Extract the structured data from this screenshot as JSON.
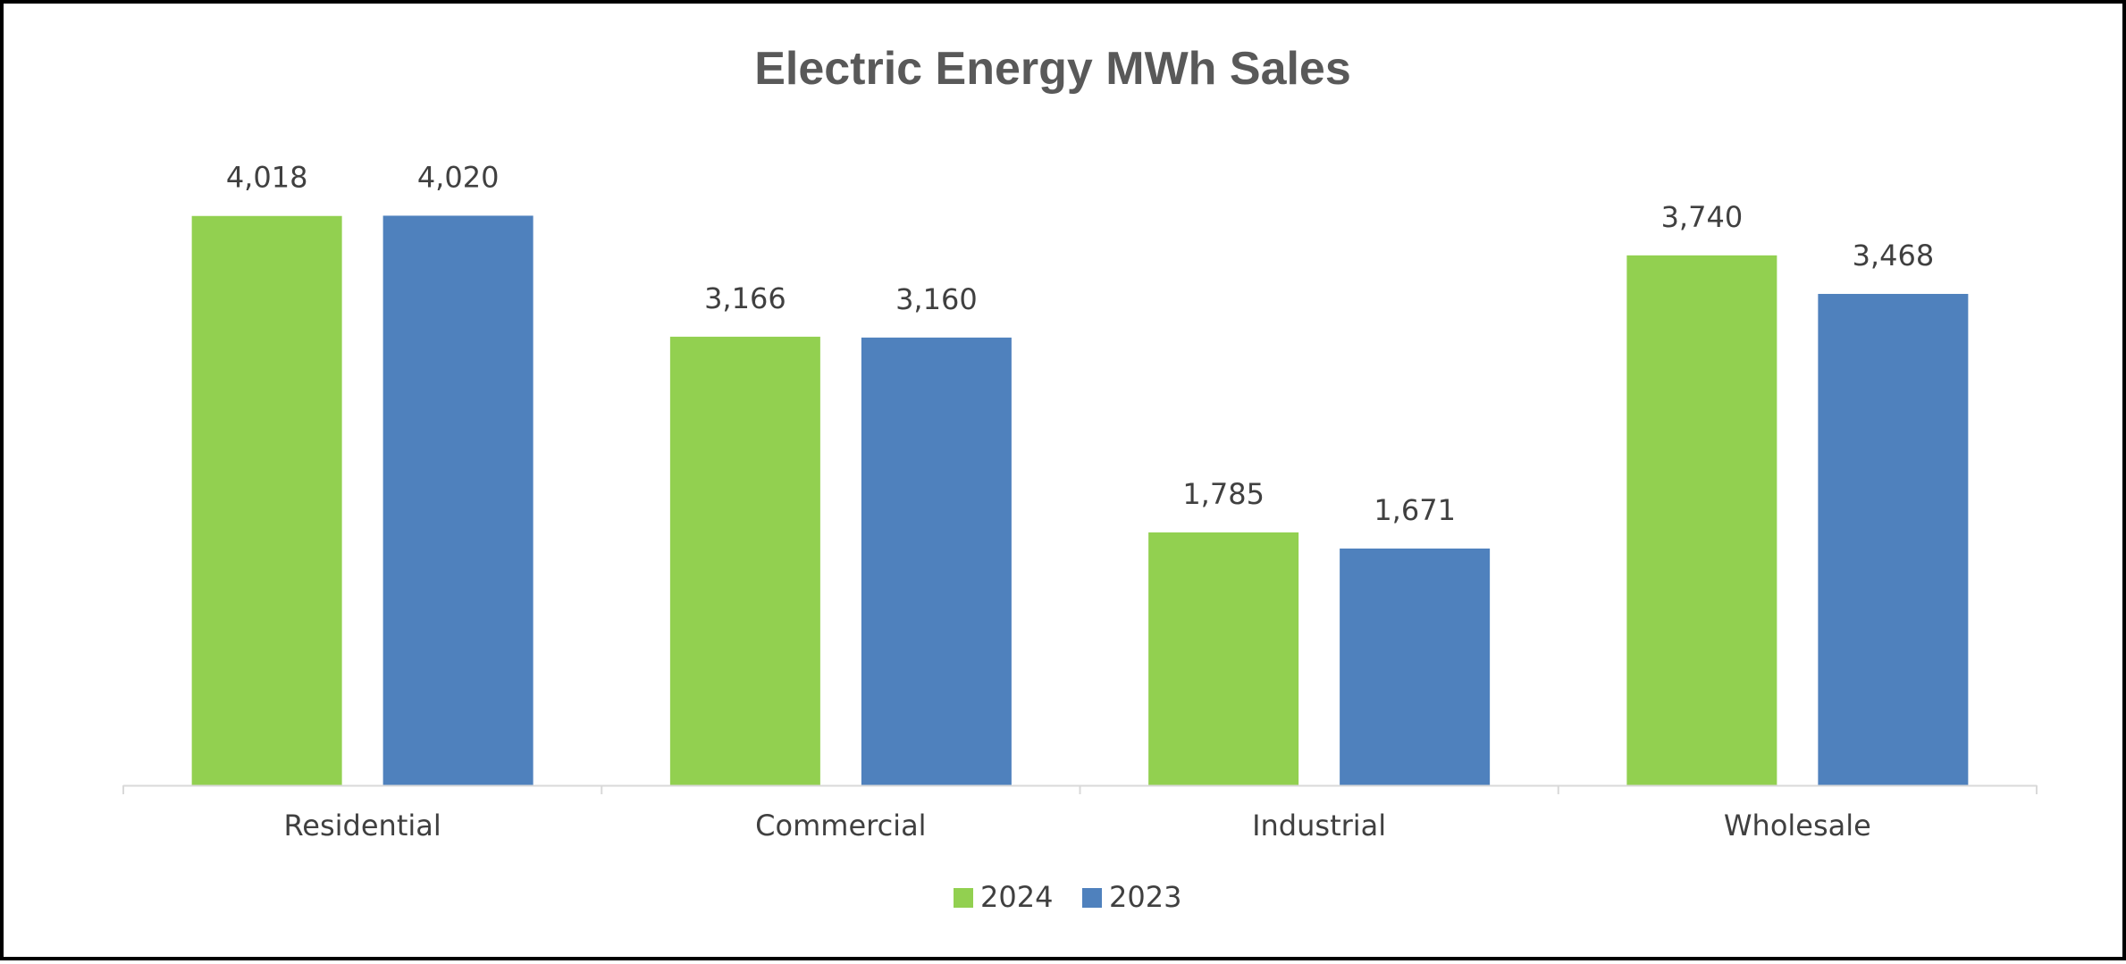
{
  "chart_data": {
    "type": "bar",
    "title": "Electric Energy MWh Sales",
    "xlabel": "",
    "ylabel": "",
    "categories": [
      "Residential",
      "Commercial",
      "Industrial",
      "Wholesale"
    ],
    "series": [
      {
        "name": "2024",
        "color": "#92D050",
        "values": [
          4018,
          3166,
          1785,
          3740
        ],
        "labels": [
          "4,018",
          "3,166",
          "1,785",
          "3,740"
        ]
      },
      {
        "name": "2023",
        "color": "#4F81BD",
        "values": [
          4020,
          3160,
          1671,
          3468
        ],
        "labels": [
          "4,020",
          "3,160",
          "1,671",
          "3,468"
        ]
      }
    ],
    "ylim": [
      0,
      4400
    ],
    "grid": false,
    "legend": "bottom-center",
    "axis_color": "#D9D9D9"
  }
}
